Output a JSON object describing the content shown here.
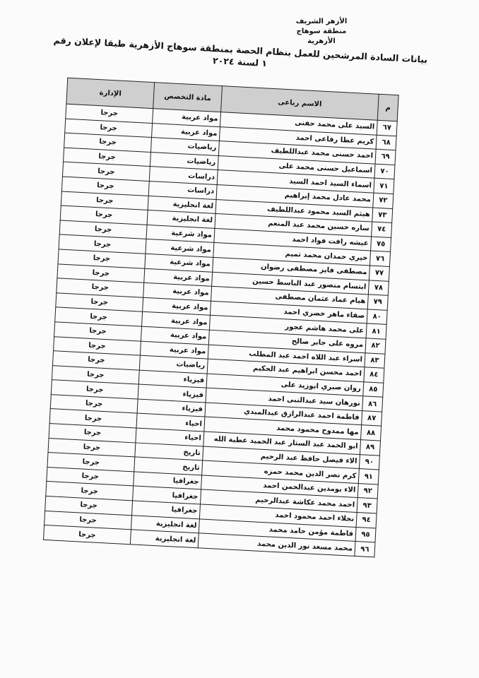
{
  "header": {
    "org_line1": "الأزهر الشريف",
    "org_line2": "منطقة سوهاج الأزهرية",
    "title": "بيانات السادة المرشحين للعمل بنظام الحصة بمنطقة سوهاج الأزهرية طبقا لإعلان رقم ١ لسنة ٢٠٢٤"
  },
  "table": {
    "columns": [
      "م",
      "الاسم رباعى",
      "مادة التخصص",
      "الإدارة"
    ],
    "rows": [
      {
        "num": "٦٧",
        "name": "السيد على محمد حفنى",
        "subject": "مواد عربية",
        "admin": "جرجا"
      },
      {
        "num": "٦٨",
        "name": "كريم عطا رفاعى احمد",
        "subject": "مواد عربية",
        "admin": "جرجا"
      },
      {
        "num": "٦٩",
        "name": "احمد حسنى محمد عبداللطيف",
        "subject": "رياضيات",
        "admin": "جرجا"
      },
      {
        "num": "٧٠",
        "name": "اسماعيل حسنى محمد على",
        "subject": "رياضيات",
        "admin": "جرجا"
      },
      {
        "num": "٧١",
        "name": "اسماء السيد احمد السيد",
        "subject": "دراسات",
        "admin": "جرجا"
      },
      {
        "num": "٧٢",
        "name": "محمد عادل محمد إبراهيم",
        "subject": "دراسات",
        "admin": "جرجا"
      },
      {
        "num": "٧٣",
        "name": "هيثم السيد محمود عبداللطيف",
        "subject": "لغة انجليزية",
        "admin": "جرجا"
      },
      {
        "num": "٧٤",
        "name": "ساره حسين محمد عبد المنعم",
        "subject": "لغة انجليزية",
        "admin": "جرجا"
      },
      {
        "num": "٧٥",
        "name": "عيشه رافت فواد احمد",
        "subject": "مواد شرعية",
        "admin": "جرجا"
      },
      {
        "num": "٧٦",
        "name": "خيري حمدان محمد تميم",
        "subject": "مواد شرعية",
        "admin": "جرجا"
      },
      {
        "num": "٧٧",
        "name": "مصطفى فايز مصطفى رضوان",
        "subject": "مواد شرعية",
        "admin": "جرجا"
      },
      {
        "num": "٧٨",
        "name": "ابتسام منصور عبد الباسط حسين",
        "subject": "مواد عربية",
        "admin": "جرجا"
      },
      {
        "num": "٧٩",
        "name": "هيام عماد عثمان مصطفى",
        "subject": "مواد عربية",
        "admin": "جرجا"
      },
      {
        "num": "٨٠",
        "name": "صفاء ماهر خضري احمد",
        "subject": "مواد عربية",
        "admin": "جرجا"
      },
      {
        "num": "٨١",
        "name": "على محمد هاشم عجور",
        "subject": "مواد عربية",
        "admin": "جرجا"
      },
      {
        "num": "٨٢",
        "name": "مروه على جابر صالح",
        "subject": "مواد عربية",
        "admin": "جرجا"
      },
      {
        "num": "٨٣",
        "name": "اسراء عبد اللاه احمد عبد المطلب",
        "subject": "مواد عربية",
        "admin": "جرجا"
      },
      {
        "num": "٨٤",
        "name": "احمد محسن ابراهيم عبد الحكيم",
        "subject": "رياضيات",
        "admin": "جرجا"
      },
      {
        "num": "٨٥",
        "name": "روان صبري ابوزيد على",
        "subject": "فيزياء",
        "admin": "جرجا"
      },
      {
        "num": "٨٦",
        "name": "نورهان سيد عبدالنبى احمد",
        "subject": "فيزياء",
        "admin": "جرجا"
      },
      {
        "num": "٨٧",
        "name": "فاطمة احمد عبدالرازق عبدالمبدي",
        "subject": "فيزياء",
        "admin": "جرجا"
      },
      {
        "num": "٨٨",
        "name": "مها ممدوح محمود محمد",
        "subject": "احياء",
        "admin": "جرجا"
      },
      {
        "num": "٨٩",
        "name": "ابو الحمد عبد الستار عبد الحميد عطية الله",
        "subject": "احياء",
        "admin": "جرجا"
      },
      {
        "num": "٩٠",
        "name": "الاء فيصل حافظ عبد الرحيم",
        "subject": "تاريخ",
        "admin": "جرجا"
      },
      {
        "num": "٩١",
        "name": "كرم نصر الدين محمد حمزه",
        "subject": "تاريخ",
        "admin": "جرجا"
      },
      {
        "num": "٩٢",
        "name": "الاء بومدين عبدالحمن احمد",
        "subject": "جغرافيا",
        "admin": "جرجا"
      },
      {
        "num": "٩٣",
        "name": "احمد محمد عكاشة عبدالرحيم",
        "subject": "جغرافيا",
        "admin": "جرجا"
      },
      {
        "num": "٩٤",
        "name": "نجلاء احمد محمود احمد",
        "subject": "جغرافيا",
        "admin": "جرجا"
      },
      {
        "num": "٩٥",
        "name": "فاطمة مؤمن حامد محمد",
        "subject": "لغة انجليزية",
        "admin": "جرجا"
      },
      {
        "num": "٩٦",
        "name": "محمد مسعد نور الدين محمد",
        "subject": "لغة انجليزية",
        "admin": "جرجا"
      }
    ]
  }
}
